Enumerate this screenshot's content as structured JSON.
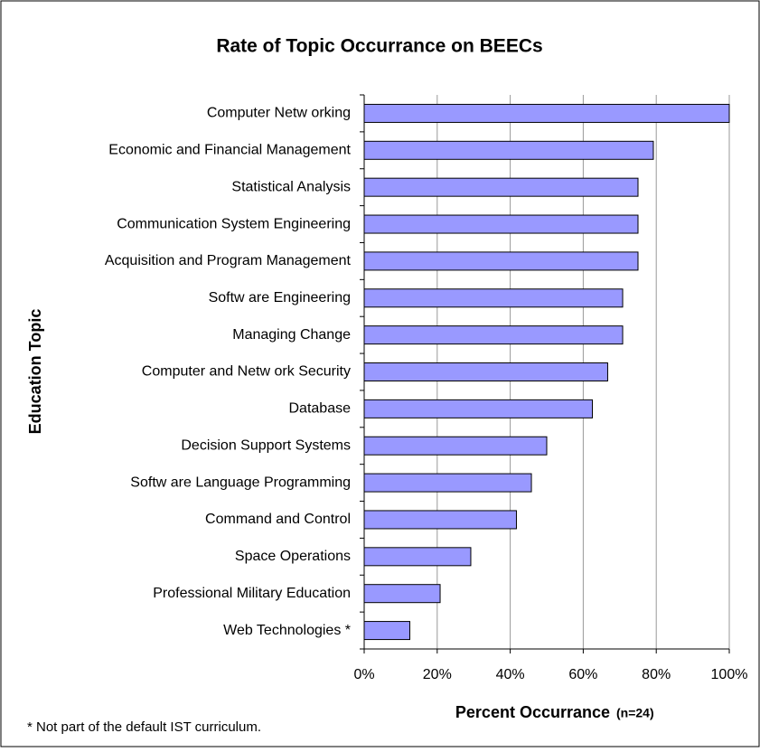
{
  "chart_data": {
    "type": "barh",
    "title": "Rate of Topic Occurrance on BEECs",
    "y_label": "Education Topic",
    "x_label": "Percent Occurrance",
    "x_label_note": "(n=24)",
    "footnote": "* Not part of the default IST curriculum.",
    "categories": [
      "Computer Netw orking",
      "Economic and Financial Management",
      "Statistical Analysis",
      "Communication System Engineering",
      "Acquisition and Program Management",
      "Softw are Engineering",
      "Managing Change",
      "Computer and Netw ork Security",
      "Database",
      "Decision Support Systems",
      "Softw are Language Programming",
      "Command and Control",
      "Space Operations",
      "Professional Military Education",
      "Web Technologies *"
    ],
    "values": [
      100,
      79.2,
      75,
      75,
      75,
      70.8,
      70.8,
      66.7,
      62.5,
      50,
      45.8,
      41.7,
      29.2,
      20.8,
      12.5
    ],
    "color": "#9999ff",
    "xlim": [
      0,
      100
    ],
    "xticks": [
      {
        "value": 0,
        "label": "0%"
      },
      {
        "value": 20,
        "label": "20%"
      },
      {
        "value": 40,
        "label": "40%"
      },
      {
        "value": 60,
        "label": "60%"
      },
      {
        "value": 80,
        "label": "80%"
      },
      {
        "value": 100,
        "label": "100%"
      }
    ],
    "grid": true
  }
}
